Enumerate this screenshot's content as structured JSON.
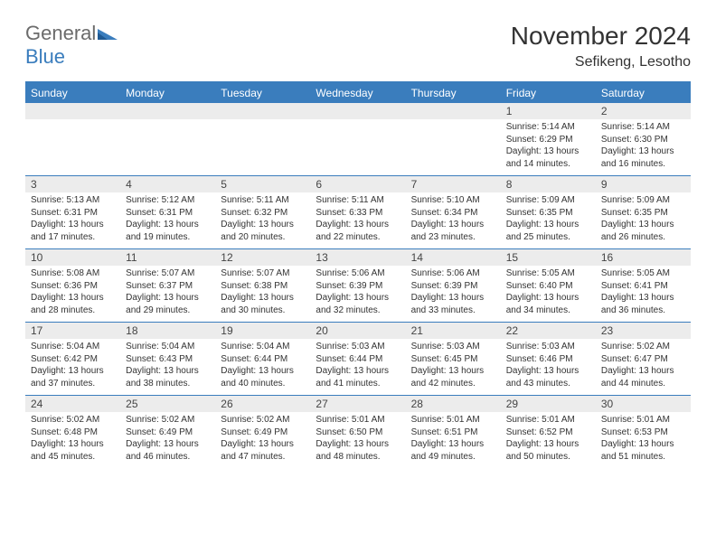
{
  "brand": {
    "part1": "General",
    "part2": "Blue"
  },
  "title": "November 2024",
  "subtitle": "Sefikeng, Lesotho",
  "colors": {
    "accent": "#3a7dbd",
    "header_text": "#ffffff",
    "daynum_bg": "#ececec",
    "text": "#333333",
    "logo_gray": "#6b6b6b",
    "background": "#ffffff"
  },
  "day_labels": [
    "Sunday",
    "Monday",
    "Tuesday",
    "Wednesday",
    "Thursday",
    "Friday",
    "Saturday"
  ],
  "weeks": [
    {
      "nums": [
        "",
        "",
        "",
        "",
        "",
        "1",
        "2"
      ],
      "cells": [
        "",
        "",
        "",
        "",
        "",
        "Sunrise: 5:14 AM\nSunset: 6:29 PM\nDaylight: 13 hours and 14 minutes.",
        "Sunrise: 5:14 AM\nSunset: 6:30 PM\nDaylight: 13 hours and 16 minutes."
      ]
    },
    {
      "nums": [
        "3",
        "4",
        "5",
        "6",
        "7",
        "8",
        "9"
      ],
      "cells": [
        "Sunrise: 5:13 AM\nSunset: 6:31 PM\nDaylight: 13 hours and 17 minutes.",
        "Sunrise: 5:12 AM\nSunset: 6:31 PM\nDaylight: 13 hours and 19 minutes.",
        "Sunrise: 5:11 AM\nSunset: 6:32 PM\nDaylight: 13 hours and 20 minutes.",
        "Sunrise: 5:11 AM\nSunset: 6:33 PM\nDaylight: 13 hours and 22 minutes.",
        "Sunrise: 5:10 AM\nSunset: 6:34 PM\nDaylight: 13 hours and 23 minutes.",
        "Sunrise: 5:09 AM\nSunset: 6:35 PM\nDaylight: 13 hours and 25 minutes.",
        "Sunrise: 5:09 AM\nSunset: 6:35 PM\nDaylight: 13 hours and 26 minutes."
      ]
    },
    {
      "nums": [
        "10",
        "11",
        "12",
        "13",
        "14",
        "15",
        "16"
      ],
      "cells": [
        "Sunrise: 5:08 AM\nSunset: 6:36 PM\nDaylight: 13 hours and 28 minutes.",
        "Sunrise: 5:07 AM\nSunset: 6:37 PM\nDaylight: 13 hours and 29 minutes.",
        "Sunrise: 5:07 AM\nSunset: 6:38 PM\nDaylight: 13 hours and 30 minutes.",
        "Sunrise: 5:06 AM\nSunset: 6:39 PM\nDaylight: 13 hours and 32 minutes.",
        "Sunrise: 5:06 AM\nSunset: 6:39 PM\nDaylight: 13 hours and 33 minutes.",
        "Sunrise: 5:05 AM\nSunset: 6:40 PM\nDaylight: 13 hours and 34 minutes.",
        "Sunrise: 5:05 AM\nSunset: 6:41 PM\nDaylight: 13 hours and 36 minutes."
      ]
    },
    {
      "nums": [
        "17",
        "18",
        "19",
        "20",
        "21",
        "22",
        "23"
      ],
      "cells": [
        "Sunrise: 5:04 AM\nSunset: 6:42 PM\nDaylight: 13 hours and 37 minutes.",
        "Sunrise: 5:04 AM\nSunset: 6:43 PM\nDaylight: 13 hours and 38 minutes.",
        "Sunrise: 5:04 AM\nSunset: 6:44 PM\nDaylight: 13 hours and 40 minutes.",
        "Sunrise: 5:03 AM\nSunset: 6:44 PM\nDaylight: 13 hours and 41 minutes.",
        "Sunrise: 5:03 AM\nSunset: 6:45 PM\nDaylight: 13 hours and 42 minutes.",
        "Sunrise: 5:03 AM\nSunset: 6:46 PM\nDaylight: 13 hours and 43 minutes.",
        "Sunrise: 5:02 AM\nSunset: 6:47 PM\nDaylight: 13 hours and 44 minutes."
      ]
    },
    {
      "nums": [
        "24",
        "25",
        "26",
        "27",
        "28",
        "29",
        "30"
      ],
      "cells": [
        "Sunrise: 5:02 AM\nSunset: 6:48 PM\nDaylight: 13 hours and 45 minutes.",
        "Sunrise: 5:02 AM\nSunset: 6:49 PM\nDaylight: 13 hours and 46 minutes.",
        "Sunrise: 5:02 AM\nSunset: 6:49 PM\nDaylight: 13 hours and 47 minutes.",
        "Sunrise: 5:01 AM\nSunset: 6:50 PM\nDaylight: 13 hours and 48 minutes.",
        "Sunrise: 5:01 AM\nSunset: 6:51 PM\nDaylight: 13 hours and 49 minutes.",
        "Sunrise: 5:01 AM\nSunset: 6:52 PM\nDaylight: 13 hours and 50 minutes.",
        "Sunrise: 5:01 AM\nSunset: 6:53 PM\nDaylight: 13 hours and 51 minutes."
      ]
    }
  ]
}
